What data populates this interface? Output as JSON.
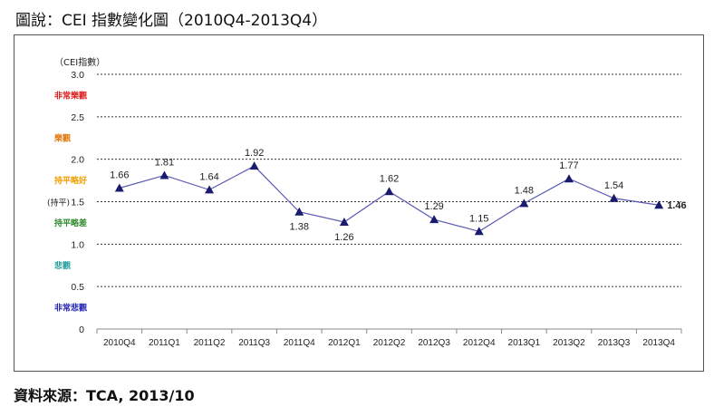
{
  "caption": "圖說：CEI 指數變化圖（2010Q4-2013Q4）",
  "source": "資料來源：TCA, 2013/10",
  "chart_data": {
    "type": "line",
    "title": "",
    "ylabel": "（CEI指數）",
    "ylim": [
      0,
      3.0
    ],
    "yticks": [
      "0",
      "0.5",
      "1.0",
      "1.5",
      "2.0",
      "2.5",
      "3.0"
    ],
    "categories": [
      "2010Q4",
      "2011Q1",
      "2011Q2",
      "2011Q3",
      "2011Q4",
      "2012Q1",
      "2012Q2",
      "2012Q3",
      "2012Q4",
      "2013Q1",
      "2013Q2",
      "2013Q3",
      "2013Q4"
    ],
    "values": [
      1.66,
      1.81,
      1.64,
      1.92,
      1.38,
      1.26,
      1.62,
      1.29,
      1.15,
      1.48,
      1.77,
      1.54,
      1.46
    ],
    "value_labels": [
      "1.66",
      "1.81",
      "1.64",
      "1.92",
      "1.38",
      "1.26",
      "1.62",
      "1.29",
      "1.15",
      "1.48",
      "1.77",
      "1.54",
      "1.46"
    ],
    "line_color": "#5a5ab4",
    "marker_color": "#1a1a6e",
    "highlight_last_color": "#e00000",
    "grid": "dashed horizontal",
    "zones": [
      {
        "label": "非常樂觀",
        "y": 2.75,
        "color": "#e02020"
      },
      {
        "label": "樂觀",
        "y": 2.25,
        "color": "#e07a10"
      },
      {
        "label": "持平略好",
        "y": 1.75,
        "color": "#f0a000"
      },
      {
        "label": "(持平)",
        "y": 1.5,
        "color": "#222222"
      },
      {
        "label": "持平略差",
        "y": 1.25,
        "color": "#2e8b2e"
      },
      {
        "label": "悲觀",
        "y": 0.75,
        "color": "#2a9fa0"
      },
      {
        "label": "非常悲觀",
        "y": 0.25,
        "color": "#2828b4"
      }
    ]
  }
}
